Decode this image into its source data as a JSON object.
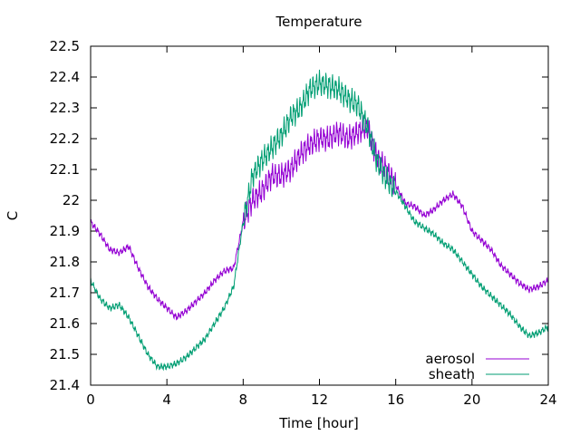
{
  "chart_data": {
    "type": "line",
    "title": "Temperature",
    "xlabel": "Time [hour]",
    "ylabel": "C",
    "xlim": [
      0,
      24
    ],
    "ylim": [
      21.4,
      22.5
    ],
    "xticks": [
      "0",
      "4",
      "8",
      "12",
      "16",
      "20",
      "24"
    ],
    "yticks": [
      "21.4",
      "21.5",
      "21.6",
      "21.7",
      "21.8",
      "21.9",
      "22",
      "22.1",
      "22.2",
      "22.3",
      "22.4",
      "22.5"
    ],
    "grid": false,
    "legend_position": "bottom-right",
    "series": [
      {
        "name": "aerosol",
        "color": "#9400d3",
        "x": [
          0,
          0.5,
          1,
          1.5,
          2,
          2.5,
          3,
          3.5,
          4,
          4.5,
          5,
          5.5,
          6,
          6.5,
          7,
          7.5,
          8,
          8.5,
          9,
          9.5,
          10,
          10.5,
          11,
          11.5,
          12,
          12.5,
          13,
          13.5,
          14,
          14.5,
          15,
          15.5,
          16,
          16.5,
          17,
          17.5,
          18,
          18.5,
          19,
          19.5,
          20,
          20.5,
          21,
          21.5,
          22,
          22.5,
          23,
          23.5,
          24
        ],
        "y": [
          21.93,
          21.89,
          21.84,
          21.83,
          21.85,
          21.78,
          21.72,
          21.68,
          21.65,
          21.62,
          21.64,
          21.67,
          21.7,
          21.74,
          21.77,
          21.78,
          21.93,
          22.0,
          22.03,
          22.08,
          22.08,
          22.1,
          22.15,
          22.18,
          22.2,
          22.2,
          22.22,
          22.2,
          22.22,
          22.24,
          22.14,
          22.1,
          22.05,
          21.99,
          21.98,
          21.95,
          21.97,
          22.0,
          22.02,
          21.98,
          21.9,
          21.87,
          21.84,
          21.79,
          21.76,
          21.73,
          21.71,
          21.72,
          21.74
        ]
      },
      {
        "name": "sheath",
        "color": "#009e73",
        "x": [
          0,
          0.5,
          1,
          1.5,
          2,
          2.5,
          3,
          3.5,
          4,
          4.5,
          5,
          5.5,
          6,
          6.5,
          7,
          7.5,
          8,
          8.5,
          9,
          9.5,
          10,
          10.5,
          11,
          11.5,
          12,
          12.5,
          13,
          13.5,
          14,
          14.5,
          15,
          15.5,
          16,
          16.5,
          17,
          17.5,
          18,
          18.5,
          19,
          19.5,
          20,
          20.5,
          21,
          21.5,
          22,
          22.5,
          23,
          23.5,
          24
        ],
        "y": [
          21.74,
          21.68,
          21.65,
          21.66,
          21.62,
          21.56,
          21.5,
          21.46,
          21.46,
          21.47,
          21.49,
          21.52,
          21.55,
          21.6,
          21.65,
          21.72,
          21.93,
          22.08,
          22.13,
          22.17,
          22.21,
          22.27,
          22.3,
          22.36,
          22.38,
          22.37,
          22.36,
          22.33,
          22.31,
          22.24,
          22.13,
          22.07,
          22.03,
          21.98,
          21.93,
          21.91,
          21.89,
          21.86,
          21.84,
          21.8,
          21.76,
          21.72,
          21.69,
          21.66,
          21.63,
          21.59,
          21.56,
          21.57,
          21.59
        ]
      }
    ]
  }
}
